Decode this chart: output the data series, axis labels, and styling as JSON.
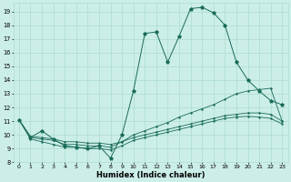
{
  "xlabel": "Humidex (Indice chaleur)",
  "bg_color": "#cceee8",
  "grid_color": "#aaddcc",
  "line_color": "#1a6b5a",
  "xlim": [
    -0.5,
    23.5
  ],
  "ylim": [
    8,
    19.6
  ],
  "xticks": [
    0,
    1,
    2,
    3,
    4,
    5,
    6,
    7,
    8,
    9,
    10,
    11,
    12,
    13,
    14,
    15,
    16,
    17,
    18,
    19,
    20,
    21,
    22,
    23
  ],
  "yticks": [
    8,
    9,
    10,
    11,
    12,
    13,
    14,
    15,
    16,
    17,
    18,
    19
  ],
  "series_main": [
    11.1,
    9.8,
    10.3,
    9.7,
    9.2,
    9.1,
    9.0,
    9.2,
    8.3,
    10.0,
    13.2,
    17.4,
    17.5,
    15.3,
    17.2,
    19.2,
    19.3,
    18.9,
    18.0,
    15.3,
    14.0,
    13.2,
    12.5,
    12.2
  ],
  "series_line2": [
    11.1,
    9.8,
    9.7,
    9.6,
    9.3,
    9.3,
    9.2,
    9.2,
    9.1,
    9.5,
    10.0,
    10.3,
    10.6,
    10.9,
    11.3,
    11.6,
    11.9,
    12.2,
    12.6,
    13.0,
    13.2,
    13.3,
    13.4,
    11.0
  ],
  "series_line3": [
    11.1,
    9.9,
    9.8,
    9.7,
    9.5,
    9.5,
    9.4,
    9.4,
    9.3,
    9.5,
    9.8,
    10.0,
    10.2,
    10.4,
    10.6,
    10.8,
    11.0,
    11.2,
    11.4,
    11.5,
    11.6,
    11.6,
    11.5,
    11.0
  ],
  "series_line4": [
    11.1,
    9.7,
    9.5,
    9.3,
    9.1,
    9.1,
    9.0,
    9.0,
    8.9,
    9.2,
    9.6,
    9.8,
    10.0,
    10.2,
    10.4,
    10.6,
    10.8,
    11.0,
    11.2,
    11.3,
    11.35,
    11.3,
    11.2,
    10.8
  ]
}
